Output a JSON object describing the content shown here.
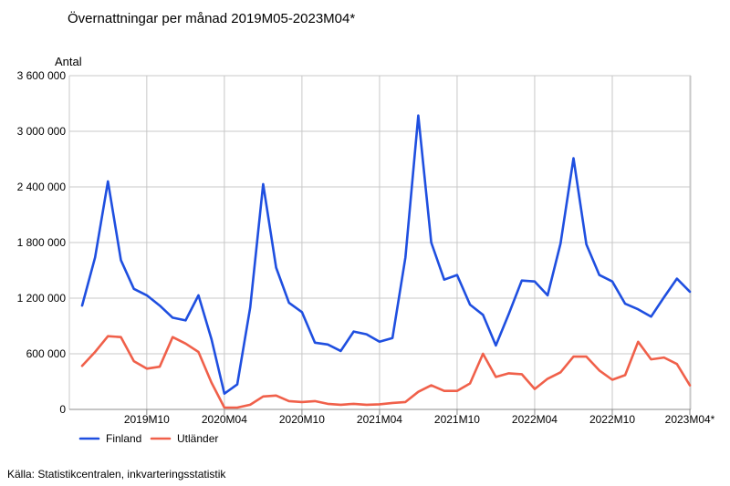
{
  "title": "Övernattningar per månad 2019M05-2023M04*",
  "source": "Källa: Statistikcentralen, inkvarteringsstatistik",
  "chart_data": {
    "type": "line",
    "title": "Övernattningar per månad 2019M05-2023M04*",
    "ylabel": "Antal",
    "xlabel": "",
    "ylim": [
      0,
      3600000
    ],
    "yticks": [
      0,
      600000,
      1200000,
      1800000,
      2400000,
      3000000,
      3600000
    ],
    "ytick_labels": [
      "0",
      "600 000",
      "1 200 000",
      "1 800 000",
      "2 400 000",
      "3 000 000",
      "3 600 000"
    ],
    "x": [
      "2019M05",
      "2019M06",
      "2019M07",
      "2019M08",
      "2019M09",
      "2019M10",
      "2019M11",
      "2019M12",
      "2020M01",
      "2020M02",
      "2020M03",
      "2020M04",
      "2020M05",
      "2020M06",
      "2020M07",
      "2020M08",
      "2020M09",
      "2020M10",
      "2020M11",
      "2020M12",
      "2021M01",
      "2021M02",
      "2021M03",
      "2021M04",
      "2021M05",
      "2021M06",
      "2021M07",
      "2021M08",
      "2021M09",
      "2021M10",
      "2021M11",
      "2021M12",
      "2022M01",
      "2022M02",
      "2022M03",
      "2022M04",
      "2022M05",
      "2022M06",
      "2022M07",
      "2022M08",
      "2022M09",
      "2022M10",
      "2022M11",
      "2022M12",
      "2023M01",
      "2023M02",
      "2023M03",
      "2023M04*"
    ],
    "xtick_labels": [
      "2019M10",
      "2020M04",
      "2020M10",
      "2021M04",
      "2021M10",
      "2022M04",
      "2022M10",
      "2023M04*"
    ],
    "grid": true,
    "legend": "bottom-left",
    "series": [
      {
        "name": "Finland",
        "color": "#1f4fe0",
        "values": [
          1120000,
          1640000,
          2460000,
          1610000,
          1300000,
          1230000,
          1120000,
          990000,
          960000,
          1230000,
          760000,
          170000,
          270000,
          1100000,
          2430000,
          1530000,
          1150000,
          1050000,
          720000,
          700000,
          630000,
          840000,
          810000,
          730000,
          770000,
          1640000,
          3170000,
          1800000,
          1400000,
          1450000,
          1130000,
          1020000,
          690000,
          1030000,
          1390000,
          1380000,
          1230000,
          1790000,
          2710000,
          1780000,
          1450000,
          1380000,
          1140000,
          1080000,
          1000000,
          1210000,
          1410000,
          1270000
        ]
      },
      {
        "name": "Utländer",
        "color": "#f0604a",
        "values": [
          470000,
          620000,
          790000,
          780000,
          520000,
          440000,
          460000,
          780000,
          710000,
          620000,
          290000,
          20000,
          20000,
          50000,
          140000,
          150000,
          90000,
          80000,
          90000,
          60000,
          50000,
          60000,
          50000,
          55000,
          70000,
          80000,
          190000,
          260000,
          200000,
          200000,
          280000,
          600000,
          350000,
          390000,
          380000,
          220000,
          330000,
          400000,
          570000,
          570000,
          420000,
          320000,
          370000,
          730000,
          540000,
          560000,
          490000,
          260000
        ]
      }
    ]
  }
}
